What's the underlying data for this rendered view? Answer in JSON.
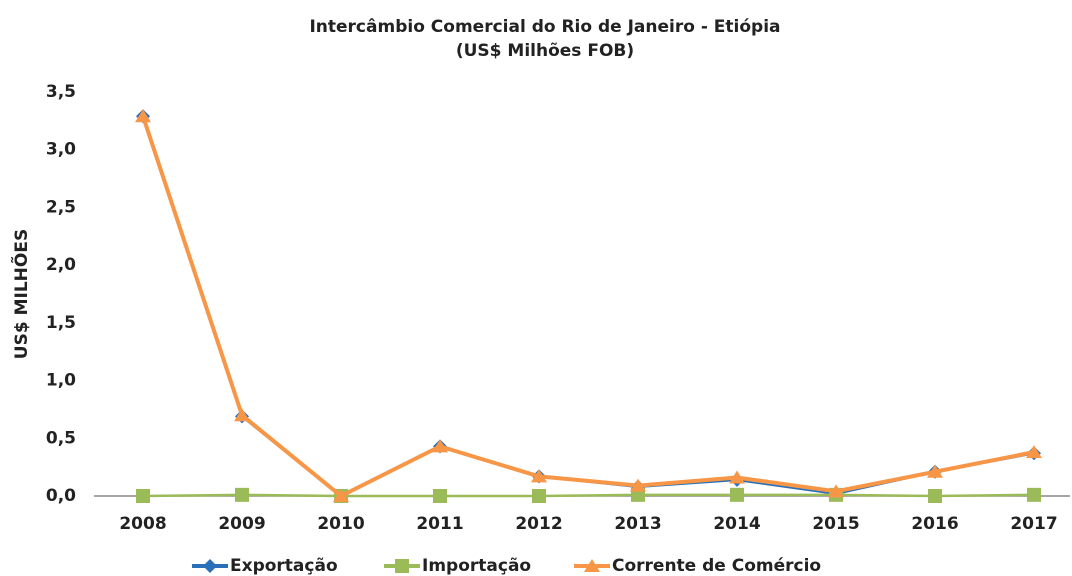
{
  "chart_data": {
    "type": "line",
    "title": "Intercâmbio Comercial do Rio de Janeiro - Etiópia",
    "subtitle": "(US$ Milhões FOB)",
    "y_label": "US$ MILHÕES",
    "categories": [
      "2008",
      "2009",
      "2010",
      "2011",
      "2012",
      "2013",
      "2014",
      "2015",
      "2016",
      "2017"
    ],
    "series": [
      {
        "name": "Exportação",
        "color": "#2a70b8",
        "marker": "diamond",
        "values": [
          3.29,
          0.69,
          0.0,
          0.43,
          0.17,
          0.08,
          0.14,
          0.02,
          0.21,
          0.37
        ]
      },
      {
        "name": "Importação",
        "color": "#9bbb59",
        "marker": "square",
        "values": [
          0.0,
          0.01,
          0.0,
          0.0,
          0.0,
          0.01,
          0.01,
          0.01,
          0.0,
          0.01
        ]
      },
      {
        "name": "Corrente de Comércio",
        "color": "#f79646",
        "marker": "triangle",
        "values": [
          3.29,
          0.7,
          0.0,
          0.43,
          0.17,
          0.09,
          0.16,
          0.04,
          0.21,
          0.38
        ]
      }
    ],
    "ylim": [
      0,
      3.5
    ],
    "yticks": [
      {
        "value": 0,
        "label": "0,0"
      },
      {
        "value": 0.5,
        "label": "0,5"
      },
      {
        "value": 1,
        "label": "1,0"
      },
      {
        "value": 1.5,
        "label": "1,5"
      },
      {
        "value": 2,
        "label": "2,0"
      },
      {
        "value": 2.5,
        "label": "2,5"
      },
      {
        "value": 3,
        "label": "3,0"
      },
      {
        "value": 3.5,
        "label": "3,5"
      }
    ],
    "grid": false,
    "legend": "bottom"
  }
}
